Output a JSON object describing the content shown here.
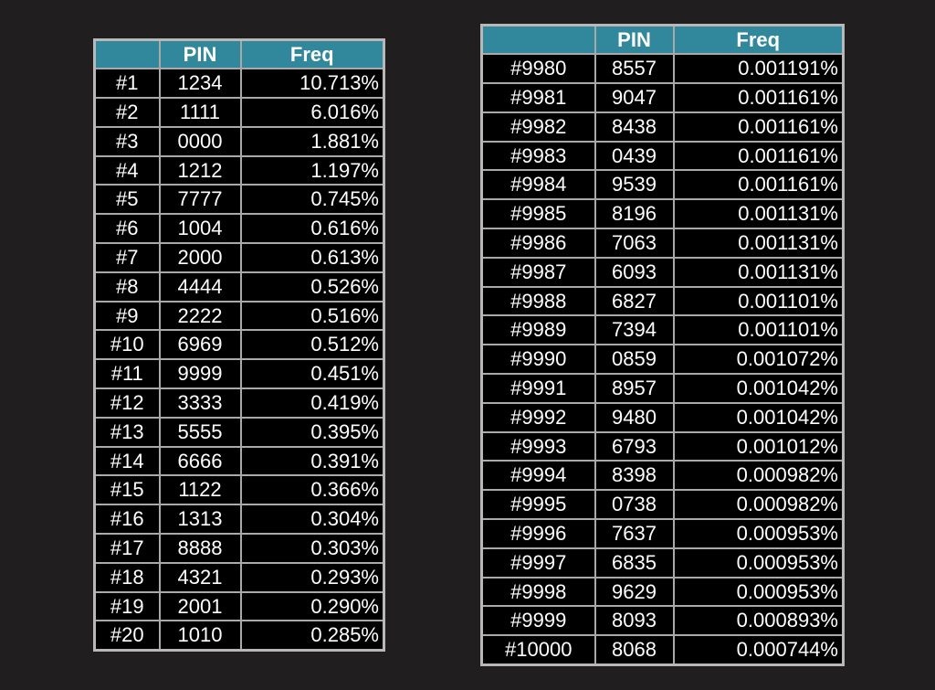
{
  "colors": {
    "background": "#211e1f",
    "header_fill": "#31879c",
    "cell_fill": "#000000",
    "grid_line": "#a9a9a9",
    "text": "#ffffff"
  },
  "tables": [
    {
      "headers": [
        "",
        "PIN",
        "Freq"
      ],
      "rows": [
        [
          "#1",
          "1234",
          "10.713%"
        ],
        [
          "#2",
          "1111",
          "6.016%"
        ],
        [
          "#3",
          "0000",
          "1.881%"
        ],
        [
          "#4",
          "1212",
          "1.197%"
        ],
        [
          "#5",
          "7777",
          "0.745%"
        ],
        [
          "#6",
          "1004",
          "0.616%"
        ],
        [
          "#7",
          "2000",
          "0.613%"
        ],
        [
          "#8",
          "4444",
          "0.526%"
        ],
        [
          "#9",
          "2222",
          "0.516%"
        ],
        [
          "#10",
          "6969",
          "0.512%"
        ],
        [
          "#11",
          "9999",
          "0.451%"
        ],
        [
          "#12",
          "3333",
          "0.419%"
        ],
        [
          "#13",
          "5555",
          "0.395%"
        ],
        [
          "#14",
          "6666",
          "0.391%"
        ],
        [
          "#15",
          "1122",
          "0.366%"
        ],
        [
          "#16",
          "1313",
          "0.304%"
        ],
        [
          "#17",
          "8888",
          "0.303%"
        ],
        [
          "#18",
          "4321",
          "0.293%"
        ],
        [
          "#19",
          "2001",
          "0.290%"
        ],
        [
          "#20",
          "1010",
          "0.285%"
        ]
      ]
    },
    {
      "headers": [
        "",
        "PIN",
        "Freq"
      ],
      "rows": [
        [
          "#9980",
          "8557",
          "0.001191%"
        ],
        [
          "#9981",
          "9047",
          "0.001161%"
        ],
        [
          "#9982",
          "8438",
          "0.001161%"
        ],
        [
          "#9983",
          "0439",
          "0.001161%"
        ],
        [
          "#9984",
          "9539",
          "0.001161%"
        ],
        [
          "#9985",
          "8196",
          "0.001131%"
        ],
        [
          "#9986",
          "7063",
          "0.001131%"
        ],
        [
          "#9987",
          "6093",
          "0.001131%"
        ],
        [
          "#9988",
          "6827",
          "0.001101%"
        ],
        [
          "#9989",
          "7394",
          "0.001101%"
        ],
        [
          "#9990",
          "0859",
          "0.001072%"
        ],
        [
          "#9991",
          "8957",
          "0.001042%"
        ],
        [
          "#9992",
          "9480",
          "0.001042%"
        ],
        [
          "#9993",
          "6793",
          "0.001012%"
        ],
        [
          "#9994",
          "8398",
          "0.000982%"
        ],
        [
          "#9995",
          "0738",
          "0.000982%"
        ],
        [
          "#9996",
          "7637",
          "0.000953%"
        ],
        [
          "#9997",
          "6835",
          "0.000953%"
        ],
        [
          "#9998",
          "9629",
          "0.000953%"
        ],
        [
          "#9999",
          "8093",
          "0.000893%"
        ],
        [
          "#10000",
          "8068",
          "0.000744%"
        ]
      ]
    }
  ]
}
